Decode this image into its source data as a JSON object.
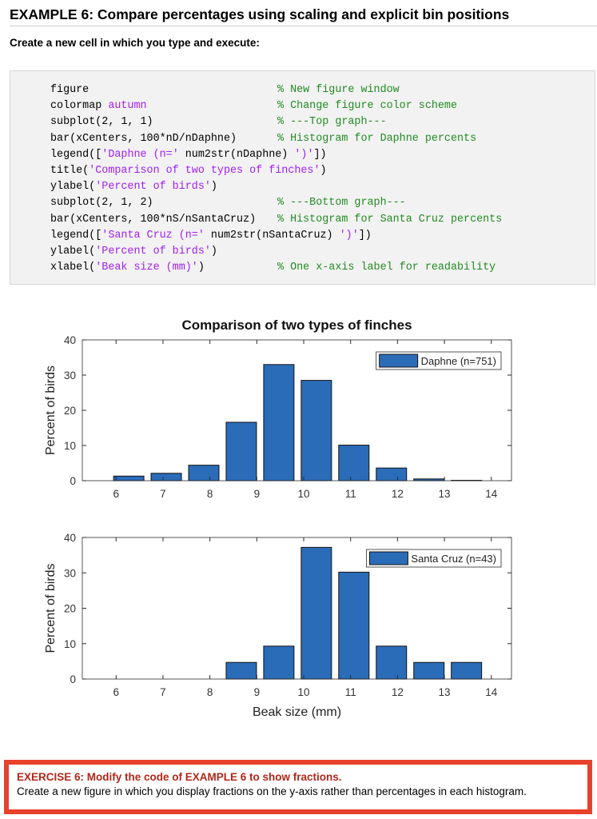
{
  "header": {
    "title": "EXAMPLE 6: Compare percentages using scaling and explicit bin positions",
    "instruction": "Create a new cell in which you type and execute:"
  },
  "code": {
    "lines": [
      {
        "code": [
          {
            "text": "figure"
          }
        ],
        "comment": {
          "text": "% New figure window",
          "color": "#228b22"
        }
      },
      {
        "code": [
          {
            "text": "colormap "
          },
          {
            "text": "autumn",
            "color": "#a020f0"
          }
        ],
        "comment": {
          "text": "% Change figure color scheme",
          "color": "#228b22"
        }
      },
      {
        "code": [
          {
            "text": "subplot(2, 1, 1)"
          }
        ],
        "comment": {
          "text": "% ---Top graph---",
          "color": "#228b22"
        }
      },
      {
        "code": [
          {
            "text": "bar(xCenters, 100*nD/nDaphne)"
          }
        ],
        "comment": {
          "text": "% Histogram for Daphne percents",
          "color": "#228b22"
        }
      },
      {
        "code": [
          {
            "text": "legend(["
          },
          {
            "text": "'Daphne (n='",
            "color": "#a020f0"
          },
          {
            "text": " num2str(nDaphne) "
          },
          {
            "text": "')'",
            "color": "#a020f0"
          },
          {
            "text": "])"
          }
        ]
      },
      {
        "code": [
          {
            "text": "title("
          },
          {
            "text": "'Comparison of two types of finches'",
            "color": "#a020f0"
          },
          {
            "text": ")"
          }
        ]
      },
      {
        "code": [
          {
            "text": "ylabel("
          },
          {
            "text": "'Percent of birds'",
            "color": "#a020f0"
          },
          {
            "text": ")"
          }
        ]
      },
      {
        "code": [
          {
            "text": "subplot(2, 1, 2)"
          }
        ],
        "comment": {
          "text": "% ---Bottom graph---",
          "color": "#228b22"
        }
      },
      {
        "code": [
          {
            "text": "bar(xCenters, 100*nS/nSantaCruz)"
          }
        ],
        "comment": {
          "text": "% Histogram for Santa Cruz percents",
          "color": "#228b22"
        }
      },
      {
        "code": [
          {
            "text": "legend(["
          },
          {
            "text": "'Santa Cruz (n='",
            "color": "#a020f0"
          },
          {
            "text": " num2str(nSantaCruz) "
          },
          {
            "text": "')'",
            "color": "#a020f0"
          },
          {
            "text": "])"
          }
        ]
      },
      {
        "code": [
          {
            "text": "ylabel("
          },
          {
            "text": "'Percent of birds'",
            "color": "#a020f0"
          },
          {
            "text": ")"
          }
        ]
      },
      {
        "code": [
          {
            "text": "xlabel("
          },
          {
            "text": "'Beak size (mm)'",
            "color": "#a020f0"
          },
          {
            "text": ")"
          }
        ],
        "comment": {
          "text": "% One x-axis label for readability",
          "color": "#228b22"
        }
      }
    ]
  },
  "chart_data": [
    {
      "type": "bar",
      "title": "Comparison of two types of finches",
      "ylabel": "Percent of birds",
      "x": [
        6.27,
        7.07,
        7.87,
        8.67,
        9.47,
        10.27,
        11.07,
        11.87,
        12.67,
        13.47
      ],
      "series": [
        {
          "name": "Daphne (n=751)",
          "color": "#2b6cb8",
          "values": [
            1.3,
            2.1,
            4.4,
            16.6,
            33.0,
            28.5,
            10.1,
            3.6,
            0.5,
            0.1
          ]
        }
      ],
      "xlim": [
        5.28,
        14.43
      ],
      "ylim": [
        0,
        40
      ],
      "xticks": [
        6,
        7,
        8,
        9,
        10,
        11,
        12,
        13,
        14
      ],
      "yticks": [
        0,
        10,
        20,
        30,
        40
      ],
      "legend": "upper right",
      "grid": false
    },
    {
      "type": "bar",
      "ylabel": "Percent of birds",
      "xlabel": "Beak size (mm)",
      "x": [
        6.27,
        7.07,
        7.87,
        8.67,
        9.47,
        10.27,
        11.07,
        11.87,
        12.67,
        13.47
      ],
      "series": [
        {
          "name": "Santa Cruz (n=43)",
          "color": "#2b6cb8",
          "values": [
            0,
            0,
            0,
            4.7,
            9.3,
            37.2,
            30.2,
            9.3,
            4.7,
            4.7
          ]
        }
      ],
      "xlim": [
        5.28,
        14.43
      ],
      "ylim": [
        0,
        40
      ],
      "xticks": [
        6,
        7,
        8,
        9,
        10,
        11,
        12,
        13,
        14
      ],
      "yticks": [
        0,
        10,
        20,
        30,
        40
      ],
      "legend": "upper right",
      "grid": false
    }
  ],
  "exercise": {
    "title": "EXERCISE 6: Modify the code of EXAMPLE 6 to show fractions.",
    "text": "Create a new figure in which you display fractions on the y-axis rather than percentages in each histogram."
  }
}
